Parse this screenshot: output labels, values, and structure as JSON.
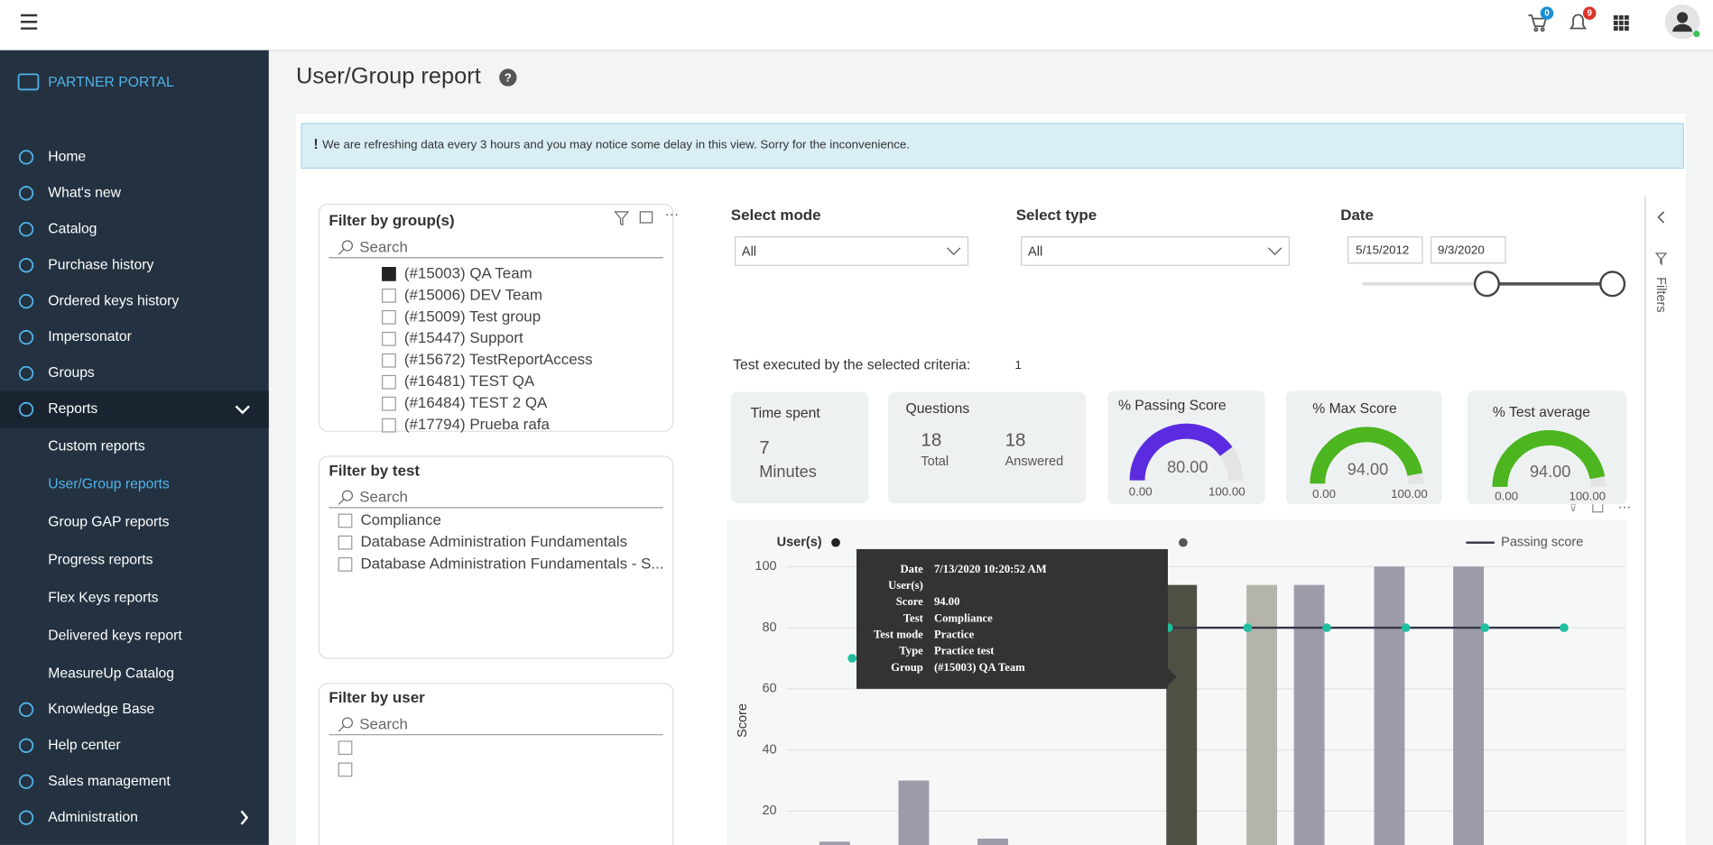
{
  "topbar": {
    "cart_count": 0,
    "notification_count": 9
  },
  "sidebar": {
    "brand": "PARTNER PORTAL",
    "items": [
      "Home",
      "What's new",
      "Catalog",
      "Purchase history",
      "Ordered keys history",
      "Impersonator",
      "Groups",
      "Reports"
    ],
    "reports_submenu": [
      "Custom reports",
      "User/Group reports",
      "Group GAP reports",
      "Progress reports",
      "Flex Keys reports",
      "Delivered keys report",
      "MeasureUp Catalog"
    ],
    "items_after": [
      "Knowledge Base",
      "Help center",
      "Sales management",
      "Administration"
    ]
  },
  "page": {
    "title": "User/Group report",
    "notice_mark": "!",
    "notice": "We are refreshing data every 3 hours and you may notice some delay in this view. Sorry for the inconvenience."
  },
  "filters": {
    "group": {
      "title": "Filter by group(s)",
      "search": "Search",
      "items": [
        "(#15003) QA Team",
        "(#15006) DEV Team",
        "(#15009) Test group",
        "(#15447) Support",
        "(#15672) TestReportAccess",
        "(#16481) TEST QA",
        "(#16484) TEST 2 QA",
        "(#17794) Prueba rafa"
      ]
    },
    "test": {
      "title": "Filter by test",
      "search": "Search",
      "items": [
        "Compliance",
        "Database Administration Fundamentals",
        "Database Administration Fundamentals - S..."
      ]
    },
    "user": {
      "title": "Filter by user",
      "search": "Search"
    }
  },
  "selects": {
    "mode": {
      "label": "Select mode",
      "value": "All"
    },
    "type": {
      "label": "Select type",
      "value": "All"
    },
    "date": {
      "label": "Date",
      "from": "5/15/2012",
      "to": "9/3/2020"
    }
  },
  "criteria": {
    "label": "Test executed by the selected criteria:",
    "count": 1
  },
  "cards": {
    "time": {
      "title": "Time spent",
      "value": 7,
      "unit": "Minutes"
    },
    "questions": {
      "title": "Questions",
      "total": 18,
      "total_label": "Total",
      "answered": 18,
      "answered_label": "Answered"
    }
  },
  "gauges": [
    {
      "title": "% Passing Score",
      "value": 80,
      "value_label": "80.00",
      "min": {
        "value": 0,
        "label": "0.00"
      },
      "max": {
        "value": 100,
        "label": "100.00"
      },
      "color": "#5b2be0"
    },
    {
      "title": "% Max Score",
      "value": 94,
      "value_label": "94.00",
      "min": {
        "value": 0,
        "label": "0.00"
      },
      "max": {
        "value": 100,
        "label": "100.00"
      },
      "color": "#4cb51f"
    },
    {
      "title": "% Test average",
      "value": 94,
      "value_label": "94.00",
      "min": {
        "value": 0,
        "label": "0.00"
      },
      "max": {
        "value": 100,
        "label": "100.00"
      },
      "color": "#4cb51f"
    }
  ],
  "chart_data": {
    "type": "bar",
    "legend_title": "User(s)",
    "y_title": "Score",
    "categories": [
      null,
      null,
      null,
      null,
      null,
      null,
      null,
      null,
      null,
      null
    ],
    "series": [
      {
        "values": [
          10,
          30,
          11,
          null,
          94,
          94,
          94,
          100,
          100,
          null
        ],
        "colors": [
          "#9e9baa",
          "#9e9baa",
          "#9e9baa",
          "#9e9baa",
          "#4f4f44",
          "#b4b4ab",
          "#9e9baa",
          "#9e9baa",
          "#9e9baa",
          "#9e9baa"
        ]
      },
      {
        "name": "Passing score",
        "type": "line",
        "color": "#343446",
        "point_color": "#1fbf9f",
        "values": [
          70,
          null,
          null,
          null,
          80,
          80,
          80,
          80,
          80,
          80
        ]
      }
    ],
    "ylim": [
      0,
      100
    ],
    "yticks": [
      20,
      40,
      60,
      80,
      100
    ],
    "grid": true,
    "tooltip": [
      {
        "label": "Date",
        "value": "7/13/2020 10:20:52 AM"
      },
      {
        "label": "User(s)"
      },
      {
        "label": "Score",
        "value": "94.00"
      },
      {
        "label": "Test",
        "value": "Compliance"
      },
      {
        "label": "Test mode",
        "value": "Practice"
      },
      {
        "label": "Type",
        "value": "Practice test"
      },
      {
        "label": "Group",
        "value": "(#15003) QA Team"
      }
    ]
  },
  "filters_pane": {
    "title": "Filters"
  }
}
